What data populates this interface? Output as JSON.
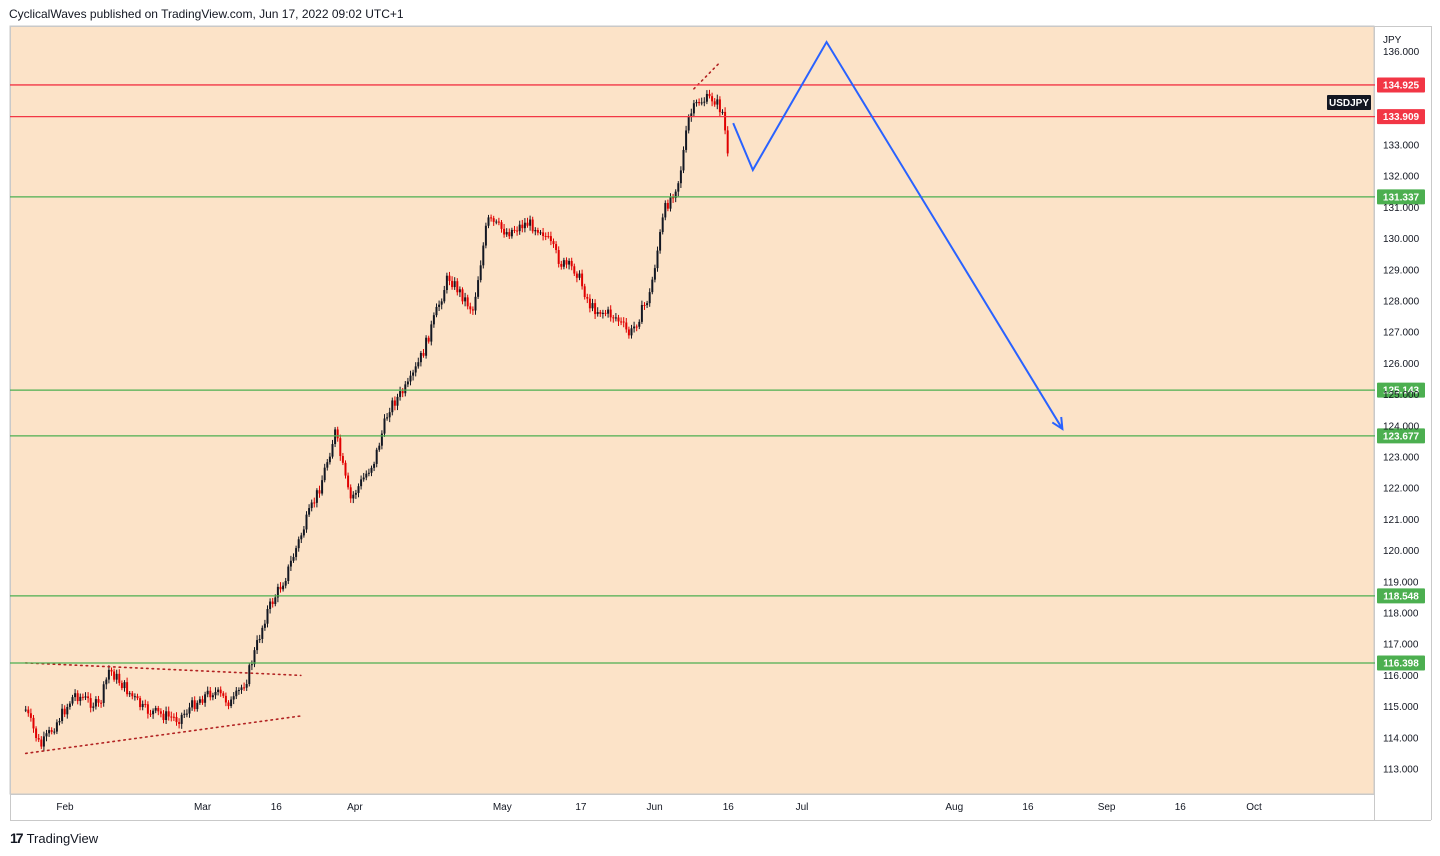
{
  "header": {
    "attribution": "CyclicalWaves published on TradingView.com, Jun 17, 2022 09:02 UTC+1"
  },
  "footer": {
    "brand": "TradingView",
    "logo_icon": "tradingview-logo-icon"
  },
  "colors": {
    "plot_background": "#fce3c8",
    "support_green": "#4caf50",
    "resistance_red": "#f23645",
    "projection_blue": "#2962ff",
    "candle_up": "#131722",
    "candle_down": "#e00000",
    "trendline_dotted": "#b22222"
  },
  "chart_data": {
    "type": "candlestick",
    "symbol": "USDJPY",
    "currency": "JPY",
    "timeframe": "intraday",
    "ylim": [
      112.3,
      136.4
    ],
    "grid": false,
    "price_ticks": [
      "113.000",
      "114.000",
      "115.000",
      "116.000",
      "117.000",
      "118.000",
      "119.000",
      "120.000",
      "121.000",
      "122.000",
      "123.000",
      "124.000",
      "130.000",
      "131.000",
      "132.000",
      "133.000",
      "136.000"
    ],
    "price_tick_values": [
      113,
      114,
      115,
      116,
      117,
      118,
      119,
      120,
      121,
      122,
      123,
      124,
      130,
      131,
      132,
      133,
      136
    ],
    "price_ticks_far": [
      "125.000",
      "126.000",
      "127.000",
      "128.000",
      "129.000"
    ],
    "price_tick_values_far": [
      125,
      126,
      127,
      128,
      129
    ],
    "x_ticks": [
      "Feb",
      "Mar",
      "16",
      "Apr",
      "May",
      "17",
      "Jun",
      "16",
      "Jul",
      "Aug",
      "16",
      "Sep",
      "16",
      "Oct"
    ],
    "x_tick_dates": [
      "2022-02-01",
      "2022-03-01",
      "2022-03-16",
      "2022-04-01",
      "2022-05-01",
      "2022-05-17",
      "2022-06-01",
      "2022-06-16",
      "2022-07-01",
      "2022-08-01",
      "2022-08-16",
      "2022-09-01",
      "2022-09-16",
      "2022-10-01"
    ],
    "levels": [
      {
        "value": 134.925,
        "label": "134.925",
        "role": "resistance",
        "color": "#f23645"
      },
      {
        "value": 133.909,
        "label": "133.909",
        "role": "resistance",
        "color": "#f23645"
      },
      {
        "value": 131.337,
        "label": "131.337",
        "role": "support",
        "color": "#4caf50"
      },
      {
        "value": 125.143,
        "label": "125.143",
        "role": "support",
        "color": "#4caf50"
      },
      {
        "value": 123.677,
        "label": "123.677",
        "role": "support",
        "color": "#4caf50"
      },
      {
        "value": 118.548,
        "label": "118.548",
        "role": "support",
        "color": "#4caf50"
      },
      {
        "value": 116.398,
        "label": "116.398",
        "role": "support",
        "color": "#4caf50"
      }
    ],
    "symbol_badge": "USDJPY",
    "price_path": {
      "dates": [
        "2022-01-24",
        "2022-01-27",
        "2022-02-03",
        "2022-02-08",
        "2022-02-10",
        "2022-02-17",
        "2022-02-24",
        "2022-02-28",
        "2022-03-03",
        "2022-03-07",
        "2022-03-10",
        "2022-03-14",
        "2022-03-18",
        "2022-03-22",
        "2022-03-25",
        "2022-03-28",
        "2022-03-31",
        "2022-04-05",
        "2022-04-08",
        "2022-04-12",
        "2022-04-15",
        "2022-04-20",
        "2022-04-25",
        "2022-04-28",
        "2022-05-02",
        "2022-05-06",
        "2022-05-09",
        "2022-05-13",
        "2022-05-16",
        "2022-05-19",
        "2022-05-24",
        "2022-05-27",
        "2022-05-31",
        "2022-06-03",
        "2022-06-06",
        "2022-06-08",
        "2022-06-10",
        "2022-06-13",
        "2022-06-15",
        "2022-06-16"
      ],
      "prices": [
        114.9,
        113.7,
        115.4,
        115.0,
        116.2,
        114.9,
        114.6,
        115.2,
        115.5,
        115.1,
        115.9,
        118.0,
        119.2,
        120.9,
        122.1,
        123.8,
        121.6,
        122.9,
        124.6,
        125.3,
        126.4,
        128.8,
        127.7,
        130.6,
        130.2,
        130.5,
        130.3,
        129.2,
        129.0,
        127.8,
        127.5,
        126.9,
        128.2,
        130.9,
        131.9,
        133.9,
        134.4,
        134.5,
        134.0,
        132.4
      ]
    },
    "projection": {
      "dates": [
        "2022-06-17",
        "2022-06-21",
        "2022-07-06",
        "2022-08-23",
        "2022-08-24"
      ],
      "prices": [
        133.7,
        132.2,
        136.3,
        123.9,
        123.6
      ]
    },
    "trendlines": [
      {
        "dates": [
          "2022-01-24",
          "2022-03-21"
        ],
        "prices": [
          116.4,
          116.0
        ],
        "style": "dotted"
      },
      {
        "dates": [
          "2022-01-24",
          "2022-03-21"
        ],
        "prices": [
          113.5,
          114.7
        ],
        "style": "dotted"
      },
      {
        "dates": [
          "2022-06-09",
          "2022-06-14"
        ],
        "prices": [
          134.8,
          135.6
        ],
        "style": "dotted"
      }
    ]
  }
}
